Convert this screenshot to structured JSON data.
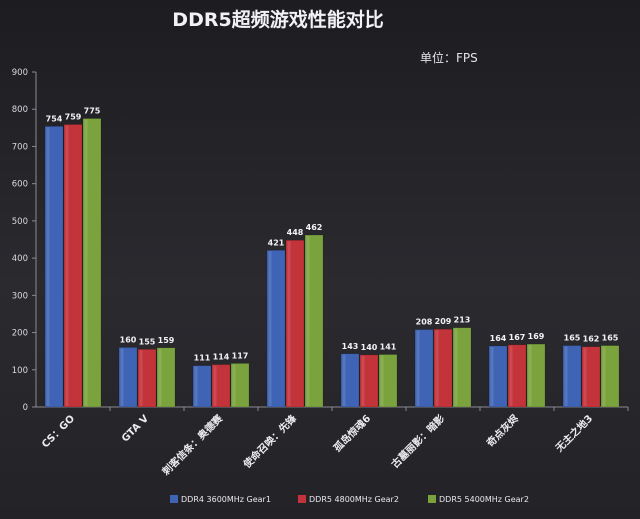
{
  "chart_data": {
    "type": "bar",
    "title": "DDR5超频游戏性能对比",
    "unit_label": "单位：FPS",
    "xlabel": "",
    "ylabel": "",
    "ylim": [
      0,
      900
    ],
    "yticks": [
      0,
      100,
      200,
      300,
      400,
      500,
      600,
      700,
      800,
      900
    ],
    "grid": false,
    "legend_position": "bottom",
    "categories": [
      "CS：GO",
      "GTA V",
      "刺客信条：奥德赛",
      "使命召唤：先锋",
      "孤岛惊魂6",
      "古墓丽影：暗影",
      "奇点灰烬",
      "无主之地3"
    ],
    "series": [
      {
        "name": "DDR4 3600MHz Gear1",
        "color": "#3f64b6",
        "values": [
          754,
          160,
          111,
          421,
          143,
          208,
          164,
          165
        ]
      },
      {
        "name": "DDR5 4800MHz Gear2",
        "color": "#c2333a",
        "values": [
          759,
          155,
          114,
          448,
          140,
          209,
          167,
          162
        ]
      },
      {
        "name": "DDR5 5400MHz Gear2",
        "color": "#7aa33d",
        "values": [
          775,
          159,
          117,
          462,
          141,
          213,
          169,
          165
        ]
      }
    ]
  }
}
